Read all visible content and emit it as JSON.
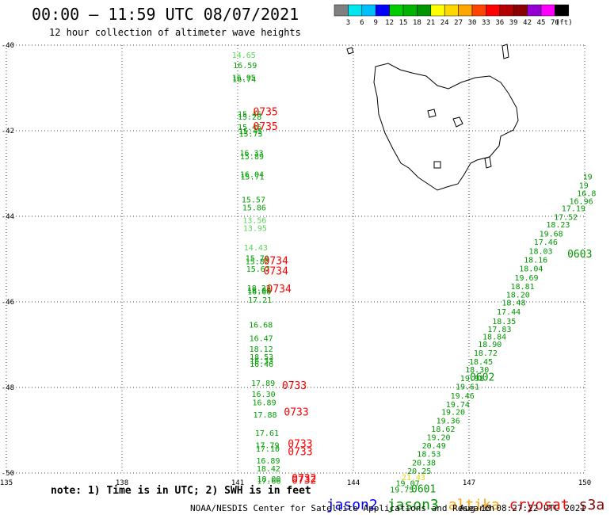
{
  "header": {
    "title": "00:00 – 11:59 UTC 08/07/2021",
    "subtitle": "12 hour collection of altimeter wave heights"
  },
  "colorbar": {
    "unit_label": "(ft)",
    "ticks": [
      "3",
      "6",
      "9",
      "12",
      "15",
      "18",
      "21",
      "24",
      "27",
      "30",
      "33",
      "36",
      "39",
      "42",
      "45",
      "70"
    ],
    "colors": [
      "#808080",
      "#00e5ee",
      "#00bfff",
      "#0000ff",
      "#00cd00",
      "#00b400",
      "#009600",
      "#ffff00",
      "#ffd700",
      "#ffa500",
      "#ff4500",
      "#ff0000",
      "#b40000",
      "#8b0000",
      "#9400d3",
      "#ff00ff",
      "#000000"
    ]
  },
  "chart_data": {
    "type": "scatter",
    "xlim": [
      135,
      150
    ],
    "ylim": [
      -50,
      -40
    ],
    "x_ticks": [
      "135",
      "138",
      "141",
      "144",
      "147",
      "150"
    ],
    "y_ticks": [
      "-40",
      "-42",
      "-44",
      "-46",
      "-48",
      "-50"
    ],
    "grid": true,
    "series": [
      {
        "name": "cryosat",
        "color": "#ff0000",
        "points": [
          {
            "x": 141.0,
            "y": -41.68,
            "value": "15.46"
          },
          {
            "x": 141.0,
            "y": -41.74,
            "value": "15.28"
          },
          {
            "x": 140.85,
            "y": -40.3,
            "value": "14.65"
          },
          {
            "x": 140.88,
            "y": -40.54,
            "value": "16.59"
          },
          {
            "x": 140.85,
            "y": -40.82,
            "value": "16.95"
          },
          {
            "x": 140.86,
            "y": -40.86,
            "value": "16.74"
          },
          {
            "x": 141.0,
            "y": -41.98,
            "value": "15.46"
          },
          {
            "x": 141.02,
            "y": -42.07,
            "value": "15.45"
          },
          {
            "x": 141.03,
            "y": -42.14,
            "value": "15.75"
          },
          {
            "x": 141.05,
            "y": -42.58,
            "value": "16.33"
          },
          {
            "x": 141.06,
            "y": -42.67,
            "value": "15.89"
          },
          {
            "x": 141.06,
            "y": -43.08,
            "value": "16.04"
          },
          {
            "x": 141.07,
            "y": -43.14,
            "value": "15.71"
          },
          {
            "x": 141.1,
            "y": -43.68,
            "value": "15.57"
          },
          {
            "x": 141.12,
            "y": -43.86,
            "value": "15.86"
          },
          {
            "x": 141.13,
            "y": -44.16,
            "value": "13.56"
          },
          {
            "x": 141.14,
            "y": -44.34,
            "value": "13.95"
          },
          {
            "x": 141.16,
            "y": -44.8,
            "value": "14.43"
          },
          {
            "x": 141.2,
            "y": -45.05,
            "value": "15.79"
          },
          {
            "x": 141.2,
            "y": -45.12,
            "value": "15.82"
          },
          {
            "x": 141.22,
            "y": -45.3,
            "value": "15.67"
          },
          {
            "x": 141.24,
            "y": -45.74,
            "value": "18.22"
          },
          {
            "x": 141.25,
            "y": -45.8,
            "value": "18.00"
          },
          {
            "x": 141.25,
            "y": -45.82,
            "value": "16.66"
          },
          {
            "x": 141.27,
            "y": -46.02,
            "value": "17.21"
          },
          {
            "x": 141.29,
            "y": -46.6,
            "value": "16.68"
          },
          {
            "x": 141.3,
            "y": -46.92,
            "value": "16.47"
          },
          {
            "x": 141.3,
            "y": -47.17,
            "value": "18.12"
          },
          {
            "x": 141.31,
            "y": -47.35,
            "value": "18.53"
          },
          {
            "x": 141.31,
            "y": -47.44,
            "value": "16.33"
          },
          {
            "x": 141.31,
            "y": -47.52,
            "value": "16.46"
          },
          {
            "x": 141.35,
            "y": -47.96,
            "value": "17.89"
          },
          {
            "x": 141.36,
            "y": -48.22,
            "value": "16.30"
          },
          {
            "x": 141.38,
            "y": -48.42,
            "value": "16.89"
          },
          {
            "x": 141.4,
            "y": -48.7,
            "value": "17.88"
          },
          {
            "x": 141.45,
            "y": -49.13,
            "value": "17.61"
          },
          {
            "x": 141.46,
            "y": -49.42,
            "value": "17.79"
          },
          {
            "x": 141.47,
            "y": -49.5,
            "value": "17.10"
          },
          {
            "x": 141.48,
            "y": -49.78,
            "value": "16.89"
          },
          {
            "x": 141.49,
            "y": -49.96,
            "value": "18.42"
          },
          {
            "x": 141.5,
            "y": -50.2,
            "value": "18.00"
          },
          {
            "x": 141.5,
            "y": -50.25,
            "value": "17.66"
          }
        ],
        "times": [
          {
            "x": 141.4,
            "y": -41.64,
            "label": "0735"
          },
          {
            "x": 141.4,
            "y": -41.98,
            "label": "0735"
          },
          {
            "x": 141.67,
            "y": -45.12,
            "label": "0734"
          },
          {
            "x": 141.67,
            "y": -45.36,
            "label": "0734"
          },
          {
            "x": 141.75,
            "y": -45.78,
            "label": "0734"
          },
          {
            "x": 142.15,
            "y": -48.04,
            "label": "0733"
          },
          {
            "x": 142.2,
            "y": -48.66,
            "label": "0733"
          },
          {
            "x": 142.3,
            "y": -49.4,
            "label": "0733"
          },
          {
            "x": 142.3,
            "y": -49.58,
            "label": "0733"
          },
          {
            "x": 142.4,
            "y": -50.2,
            "label": "0732"
          },
          {
            "x": 142.4,
            "y": -50.25,
            "label": "0732"
          }
        ]
      },
      {
        "name": "jason3",
        "color": "#009600",
        "points": [
          {
            "x": 149.95,
            "y": -43.14,
            "value": "19"
          },
          {
            "x": 149.85,
            "y": -43.34,
            "value": "19"
          },
          {
            "x": 149.8,
            "y": -43.53,
            "value": "16.8"
          },
          {
            "x": 149.6,
            "y": -43.71,
            "value": "16.96"
          },
          {
            "x": 149.4,
            "y": -43.88,
            "value": "17.19"
          },
          {
            "x": 149.2,
            "y": -44.08,
            "value": "17.52"
          },
          {
            "x": 149.0,
            "y": -44.26,
            "value": "18.23"
          },
          {
            "x": 148.82,
            "y": -44.47,
            "value": "19.68"
          },
          {
            "x": 148.68,
            "y": -44.67,
            "value": "17.46"
          },
          {
            "x": 148.55,
            "y": -44.88,
            "value": "18.03"
          },
          {
            "x": 148.42,
            "y": -45.08,
            "value": "18.16"
          },
          {
            "x": 148.3,
            "y": -45.29,
            "value": "18.04"
          },
          {
            "x": 148.18,
            "y": -45.5,
            "value": "19.69"
          },
          {
            "x": 148.08,
            "y": -45.7,
            "value": "18.81"
          },
          {
            "x": 147.96,
            "y": -45.9,
            "value": "18.20"
          },
          {
            "x": 147.85,
            "y": -46.08,
            "value": "18.48"
          },
          {
            "x": 147.72,
            "y": -46.3,
            "value": "17.44"
          },
          {
            "x": 147.6,
            "y": -46.52,
            "value": "18.35"
          },
          {
            "x": 147.48,
            "y": -46.7,
            "value": "17.83"
          },
          {
            "x": 147.35,
            "y": -46.88,
            "value": "18.84"
          },
          {
            "x": 147.23,
            "y": -47.06,
            "value": "18.90"
          },
          {
            "x": 147.12,
            "y": -47.26,
            "value": "18.72"
          },
          {
            "x": 147.0,
            "y": -47.46,
            "value": "18.45"
          },
          {
            "x": 146.9,
            "y": -47.65,
            "value": "18.30"
          },
          {
            "x": 146.77,
            "y": -47.85,
            "value": "19.91"
          },
          {
            "x": 146.65,
            "y": -48.05,
            "value": "19.61"
          },
          {
            "x": 146.52,
            "y": -48.26,
            "value": "19.46"
          },
          {
            "x": 146.4,
            "y": -48.46,
            "value": "19.74"
          },
          {
            "x": 146.28,
            "y": -48.64,
            "value": "19.20"
          },
          {
            "x": 146.15,
            "y": -48.84,
            "value": "19.36"
          },
          {
            "x": 146.02,
            "y": -49.04,
            "value": "18.62"
          },
          {
            "x": 145.9,
            "y": -49.23,
            "value": "19.20"
          },
          {
            "x": 145.78,
            "y": -49.43,
            "value": "20.49"
          },
          {
            "x": 145.65,
            "y": -49.62,
            "value": "18.53"
          },
          {
            "x": 145.52,
            "y": -49.82,
            "value": "20.38"
          },
          {
            "x": 145.4,
            "y": -50.02,
            "value": "20.25"
          },
          {
            "x": 145.25,
            "y": -50.17,
            "value": "21.43"
          },
          {
            "x": 145.1,
            "y": -50.31,
            "value": "19.07"
          },
          {
            "x": 144.95,
            "y": -50.45,
            "value": "19.75"
          }
        ],
        "times": [
          {
            "x": 149.55,
            "y": -44.96,
            "label": "0603"
          },
          {
            "x": 147.02,
            "y": -47.84,
            "label": "0602"
          },
          {
            "x": 145.5,
            "y": -50.45,
            "label": "0601"
          }
        ]
      }
    ],
    "legend": [
      {
        "name": "jason2",
        "color": "#0000ff"
      },
      {
        "name": "jason3",
        "color": "#009600"
      },
      {
        "name": "altika",
        "color": "#ffa500"
      },
      {
        "name": "cryosat",
        "color": "#ff0000"
      },
      {
        "name": "s3a",
        "color": "#8b0000"
      }
    ]
  },
  "note": "note: 1) Time is in UTC; 2) SWH is in feet",
  "footer": {
    "credit": "NOAA/NESDIS Center for Satellite Applications and Research",
    "timestamp": "Aug 10 08:27:22 UTC 2021"
  }
}
